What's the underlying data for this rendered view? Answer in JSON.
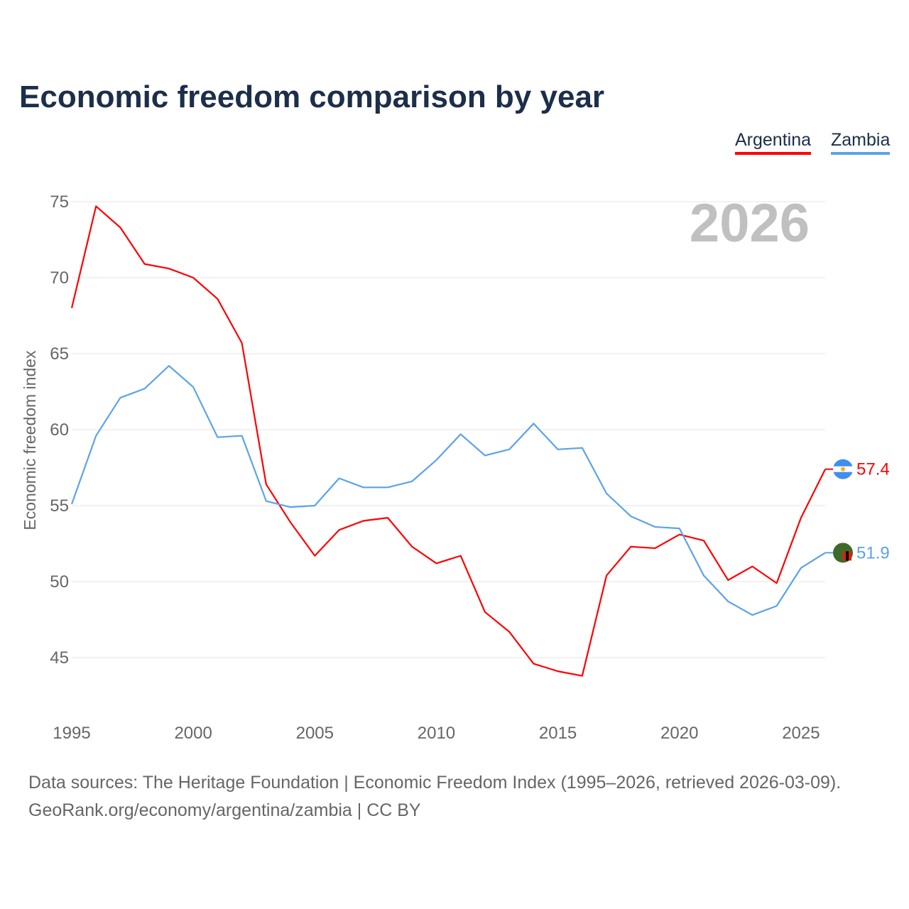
{
  "title": "Economic freedom comparison by year",
  "year_watermark": "2026",
  "sources": [
    "Data sources: The Heritage Foundation | Economic Freedom Index (1995–2026, retrieved 2026-03-09).",
    "GeoRank.org/economy/argentina/zambia | CC BY"
  ],
  "chart_data": {
    "type": "line",
    "title": "Economic freedom comparison by year",
    "xlabel": "",
    "ylabel": "Economic freedom index",
    "xlim": [
      1995,
      2026
    ],
    "ylim": [
      42,
      76
    ],
    "x_ticks": [
      1995,
      2000,
      2005,
      2010,
      2015,
      2020,
      2025
    ],
    "y_ticks": [
      45,
      50,
      55,
      60,
      65,
      70,
      75
    ],
    "grid": true,
    "legend_placement": "top-right",
    "x": [
      1995,
      1996,
      1997,
      1998,
      1999,
      2000,
      2001,
      2002,
      2003,
      2004,
      2005,
      2006,
      2007,
      2008,
      2009,
      2010,
      2011,
      2012,
      2013,
      2014,
      2015,
      2016,
      2017,
      2018,
      2019,
      2020,
      2021,
      2022,
      2023,
      2024,
      2025,
      2026
    ],
    "series": [
      {
        "name": "Argentina",
        "color": "#ff0000",
        "end_label": "57.4",
        "values": [
          68.0,
          74.7,
          73.3,
          70.9,
          70.6,
          70.0,
          68.6,
          65.7,
          56.4,
          53.9,
          51.7,
          53.4,
          54.0,
          54.2,
          52.3,
          51.2,
          51.7,
          48.0,
          46.7,
          44.6,
          44.1,
          43.8,
          50.4,
          52.3,
          52.2,
          53.1,
          52.7,
          50.1,
          51.0,
          49.9,
          54.2,
          57.4
        ]
      },
      {
        "name": "Zambia",
        "color": "#5ba3ea",
        "end_label": "51.9",
        "values": [
          55.1,
          59.6,
          62.1,
          62.7,
          64.2,
          62.8,
          59.5,
          59.6,
          55.3,
          54.9,
          55.0,
          56.8,
          56.2,
          56.2,
          56.6,
          58.0,
          59.7,
          58.3,
          58.7,
          60.4,
          58.7,
          58.8,
          55.8,
          54.3,
          53.6,
          53.5,
          50.4,
          48.7,
          47.8,
          48.4,
          50.9,
          51.9
        ]
      }
    ]
  }
}
